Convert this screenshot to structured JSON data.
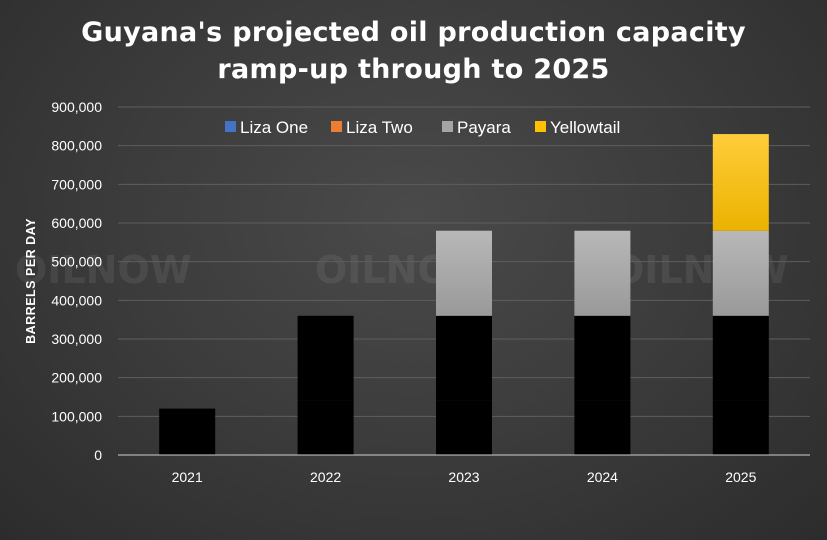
{
  "chart_data": {
    "type": "bar",
    "stacked": true,
    "title": "Guyana's projected oil production capacity ramp-up through to 2025",
    "title_lines": [
      "Guyana's projected oil production capacity",
      "ramp-up through to 2025"
    ],
    "xlabel": "",
    "ylabel": "BARRELS PER DAY",
    "categories": [
      "2021",
      "2022",
      "2023",
      "2024",
      "2025"
    ],
    "ylim": [
      0,
      900000
    ],
    "yticks": [
      0,
      100000,
      200000,
      300000,
      400000,
      500000,
      600000,
      700000,
      800000,
      900000
    ],
    "ytick_labels": [
      "0",
      "100,000",
      "200,000",
      "300,000",
      "400,000",
      "500,000",
      "600,000",
      "700,000",
      "800,000",
      "900,000"
    ],
    "grid": true,
    "legend_position": "top",
    "series": [
      {
        "name": "Liza One",
        "color": "#4472C4",
        "values": [
          120000,
          140000,
          140000,
          140000,
          140000
        ]
      },
      {
        "name": "Liza Two",
        "color": "#ED7D31",
        "values": [
          0,
          220000,
          220000,
          220000,
          220000
        ]
      },
      {
        "name": "Payara",
        "color": "#A5A5A5",
        "values": [
          0,
          0,
          220000,
          220000,
          220000
        ]
      },
      {
        "name": "Yellowtail",
        "color": "#FFC000",
        "values": [
          0,
          0,
          0,
          0,
          250000
        ]
      }
    ]
  },
  "watermark": "OILNOW"
}
